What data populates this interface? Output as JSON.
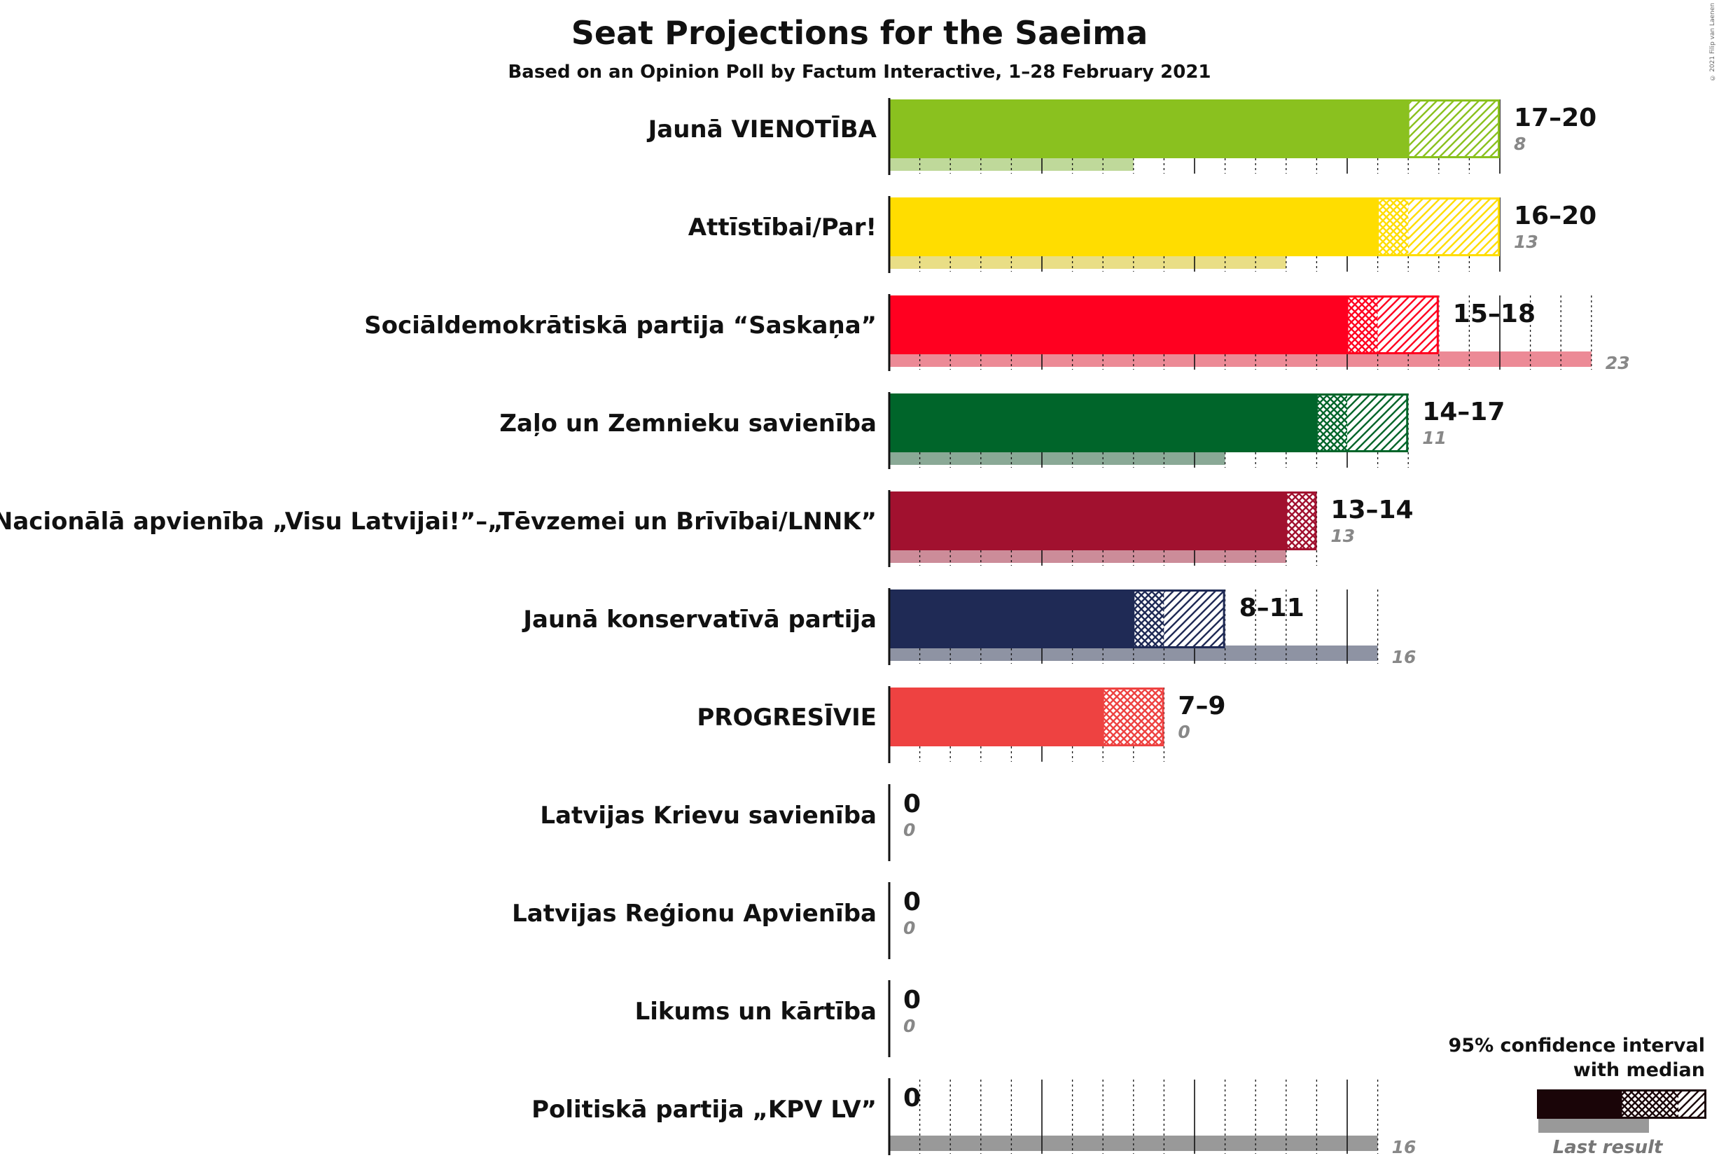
{
  "chart_data": {
    "type": "bar",
    "title": "Seat Projections for the Saeima",
    "subtitle": "Based on an Opinion Poll by Factum Interactive, 1–28 February 2021",
    "xlabel": "",
    "ylabel": "",
    "xlim": [
      0,
      23
    ],
    "grid": true,
    "parties": [
      {
        "name": "Jaunā VIENOTĪBA",
        "low": 17,
        "median": 17,
        "high": 20,
        "range_label": "17–20",
        "last_result": 8,
        "last_label": "8",
        "color": "#8AC11F",
        "last_color": "#BFD99A"
      },
      {
        "name": "Attīstībai/Par!",
        "low": 16,
        "median": 17,
        "high": 20,
        "range_label": "16–20",
        "last_result": 13,
        "last_label": "13",
        "color": "#FFDD00",
        "last_color": "#E9DE86"
      },
      {
        "name": "Sociāldemokrātiskā partija “Saskaņa”",
        "low": 15,
        "median": 16,
        "high": 18,
        "range_label": "15–18",
        "last_result": 23,
        "last_label": "23",
        "color": "#FF0020",
        "last_color": "#EC8A96"
      },
      {
        "name": "Zaļo un Zemnieku savienība",
        "low": 14,
        "median": 15,
        "high": 17,
        "range_label": "14–17",
        "last_result": 11,
        "last_label": "11",
        "color": "#00652A",
        "last_color": "#8AA996"
      },
      {
        "name": "Nacionālā apvienība „Visu Latvijai!”–„Tēvzemei un Brīvībai/LNNK”",
        "low": 13,
        "median": 14,
        "high": 14,
        "range_label": "13–14",
        "last_result": 13,
        "last_label": "13",
        "color": "#A1112F",
        "last_color": "#CC8C99"
      },
      {
        "name": "Jaunā konservatīvā partija",
        "low": 8,
        "median": 9,
        "high": 11,
        "range_label": "8–11",
        "last_result": 16,
        "last_label": "16",
        "color": "#1F2A55",
        "last_color": "#8E93A3"
      },
      {
        "name": "PROGRESĪVIE",
        "low": 7,
        "median": 9,
        "high": 9,
        "range_label": "7–9",
        "last_result": 0,
        "last_label": "0",
        "color": "#EE4241",
        "last_color": "#F29F9E"
      },
      {
        "name": "Latvijas Krievu savienība",
        "low": 0,
        "median": 0,
        "high": 0,
        "range_label": "0",
        "last_result": 0,
        "last_label": "0",
        "color": "#444444",
        "last_color": "#999999"
      },
      {
        "name": "Latvijas Reģionu Apvienība",
        "low": 0,
        "median": 0,
        "high": 0,
        "range_label": "0",
        "last_result": 0,
        "last_label": "0",
        "color": "#444444",
        "last_color": "#999999"
      },
      {
        "name": "Likums un kārtība",
        "low": 0,
        "median": 0,
        "high": 0,
        "range_label": "0",
        "last_result": 0,
        "last_label": "0",
        "color": "#444444",
        "last_color": "#999999"
      },
      {
        "name": "Politiskā partija „KPV LV”",
        "low": 0,
        "median": 0,
        "high": 0,
        "range_label": "0",
        "last_result": 16,
        "last_label": "16",
        "color": "#444444",
        "last_color": "#999999"
      }
    ],
    "legend": {
      "title_line1": "95% confidence interval",
      "title_line2": "with median",
      "last_label": "Last result",
      "placement": "bottom-right"
    }
  },
  "copyright": "© 2021 Filip van Laenen"
}
